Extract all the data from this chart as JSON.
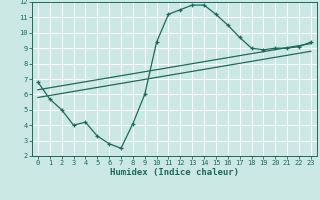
{
  "xlabel": "Humidex (Indice chaleur)",
  "bg_color": "#cce8e5",
  "line_color": "#1a6b5a",
  "grid_color": "#ffffff",
  "xlim": [
    -0.5,
    23.5
  ],
  "ylim": [
    2,
    12
  ],
  "xticks": [
    0,
    1,
    2,
    3,
    4,
    5,
    6,
    7,
    8,
    9,
    10,
    11,
    12,
    13,
    14,
    15,
    16,
    17,
    18,
    19,
    20,
    21,
    22,
    23
  ],
  "yticks": [
    2,
    3,
    4,
    5,
    6,
    7,
    8,
    9,
    10,
    11,
    12
  ],
  "curve1_x": [
    0,
    1,
    2,
    3,
    4,
    5,
    6,
    7,
    8,
    9,
    10,
    11,
    12,
    13,
    14,
    15,
    16,
    17,
    18,
    19,
    20,
    21,
    22,
    23
  ],
  "curve1_y": [
    6.8,
    5.7,
    5.0,
    4.0,
    4.2,
    3.3,
    2.8,
    2.5,
    4.1,
    6.0,
    9.4,
    11.2,
    11.5,
    11.8,
    11.8,
    11.2,
    10.5,
    9.7,
    9.0,
    8.9,
    9.0,
    9.0,
    9.1,
    9.4
  ],
  "line2_x": [
    0,
    23
  ],
  "line2_y": [
    6.3,
    9.3
  ],
  "line3_x": [
    0,
    23
  ],
  "line3_y": [
    5.8,
    8.8
  ],
  "tick_fontsize": 5.0,
  "xlabel_fontsize": 6.5,
  "marker_size": 3.0,
  "linewidth": 0.9
}
